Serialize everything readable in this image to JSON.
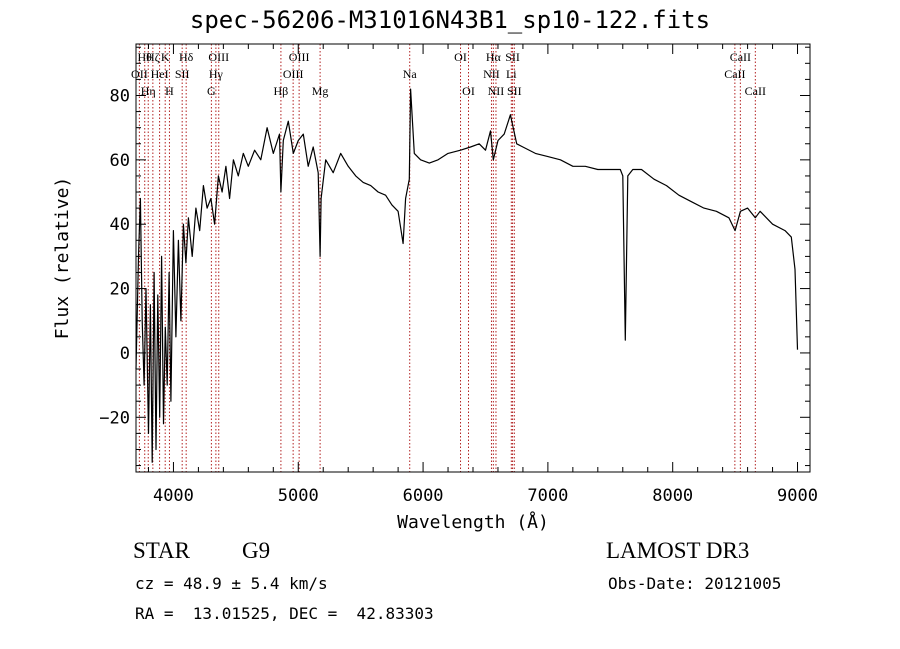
{
  "title": "spec-56206-M31016N43B1_sp10-122.fits",
  "info": {
    "class": "STAR",
    "subclass": "G9",
    "survey": "LAMOST DR3",
    "cz": "cz = 48.9 ± 5.4 km/s",
    "obs_date": "Obs-Date: 20121005",
    "radec": "RA =  13.01525, DEC =  42.83303"
  },
  "colors": {
    "spectrum": "#000000",
    "lines": "#b22222",
    "frame": "#000000"
  },
  "chart_data": {
    "type": "line",
    "title": "spec-56206-M31016N43B1_sp10-122.fits",
    "xlabel": "Wavelength (Å)",
    "ylabel": "Flux (relative)",
    "xlim": [
      3700,
      9100
    ],
    "ylim": [
      -37,
      96
    ],
    "xticks": [
      4000,
      5000,
      6000,
      7000,
      8000,
      9000
    ],
    "yticks": [
      -20,
      0,
      20,
      40,
      60,
      80
    ],
    "series": [
      {
        "name": "flux",
        "points": [
          [
            3700,
            -5
          ],
          [
            3720,
            30
          ],
          [
            3735,
            48
          ],
          [
            3750,
            10
          ],
          [
            3765,
            -10
          ],
          [
            3780,
            20
          ],
          [
            3800,
            -25
          ],
          [
            3815,
            15
          ],
          [
            3830,
            -34
          ],
          [
            3845,
            25
          ],
          [
            3860,
            -30
          ],
          [
            3875,
            18
          ],
          [
            3890,
            -20
          ],
          [
            3905,
            30
          ],
          [
            3920,
            -22
          ],
          [
            3935,
            8
          ],
          [
            3950,
            -10
          ],
          [
            3965,
            25
          ],
          [
            3980,
            -15
          ],
          [
            4000,
            38
          ],
          [
            4020,
            5
          ],
          [
            4040,
            35
          ],
          [
            4060,
            10
          ],
          [
            4080,
            40
          ],
          [
            4100,
            28
          ],
          [
            4120,
            42
          ],
          [
            4150,
            30
          ],
          [
            4180,
            45
          ],
          [
            4210,
            38
          ],
          [
            4240,
            52
          ],
          [
            4270,
            45
          ],
          [
            4300,
            48
          ],
          [
            4330,
            40
          ],
          [
            4360,
            55
          ],
          [
            4390,
            50
          ],
          [
            4420,
            58
          ],
          [
            4450,
            48
          ],
          [
            4480,
            60
          ],
          [
            4520,
            55
          ],
          [
            4560,
            62
          ],
          [
            4600,
            58
          ],
          [
            4650,
            63
          ],
          [
            4700,
            60
          ],
          [
            4750,
            70
          ],
          [
            4800,
            62
          ],
          [
            4850,
            68
          ],
          [
            4861,
            50
          ],
          [
            4880,
            66
          ],
          [
            4920,
            72
          ],
          [
            4960,
            62
          ],
          [
            5000,
            66
          ],
          [
            5040,
            68
          ],
          [
            5080,
            58
          ],
          [
            5120,
            64
          ],
          [
            5160,
            56
          ],
          [
            5175,
            30
          ],
          [
            5183,
            48
          ],
          [
            5220,
            60
          ],
          [
            5280,
            56
          ],
          [
            5340,
            62
          ],
          [
            5400,
            58
          ],
          [
            5460,
            55
          ],
          [
            5520,
            53
          ],
          [
            5580,
            52
          ],
          [
            5640,
            50
          ],
          [
            5700,
            49
          ],
          [
            5750,
            46
          ],
          [
            5800,
            44
          ],
          [
            5840,
            34
          ],
          [
            5860,
            48
          ],
          [
            5890,
            54
          ],
          [
            5900,
            82
          ],
          [
            5930,
            62
          ],
          [
            5980,
            60
          ],
          [
            6050,
            59
          ],
          [
            6120,
            60
          ],
          [
            6200,
            62
          ],
          [
            6300,
            63
          ],
          [
            6380,
            64
          ],
          [
            6450,
            65
          ],
          [
            6500,
            63
          ],
          [
            6540,
            69
          ],
          [
            6563,
            60
          ],
          [
            6600,
            66
          ],
          [
            6650,
            68
          ],
          [
            6700,
            74
          ],
          [
            6750,
            65
          ],
          [
            6800,
            64
          ],
          [
            6900,
            62
          ],
          [
            7000,
            61
          ],
          [
            7100,
            60
          ],
          [
            7200,
            58
          ],
          [
            7300,
            58
          ],
          [
            7400,
            57
          ],
          [
            7500,
            57
          ],
          [
            7580,
            57
          ],
          [
            7600,
            55
          ],
          [
            7620,
            4
          ],
          [
            7640,
            55
          ],
          [
            7680,
            57
          ],
          [
            7750,
            57
          ],
          [
            7850,
            54
          ],
          [
            7950,
            52
          ],
          [
            8050,
            49
          ],
          [
            8150,
            47
          ],
          [
            8250,
            45
          ],
          [
            8350,
            44
          ],
          [
            8450,
            42
          ],
          [
            8500,
            38
          ],
          [
            8542,
            44
          ],
          [
            8600,
            45
          ],
          [
            8662,
            42
          ],
          [
            8700,
            44
          ],
          [
            8800,
            40
          ],
          [
            8900,
            38
          ],
          [
            8950,
            36
          ],
          [
            8980,
            26
          ],
          [
            9000,
            1
          ]
        ]
      }
    ],
    "lines": [
      {
        "x": 3727,
        "upper": "OII",
        "lower": "OII",
        "tier": 2
      },
      {
        "x": 3770,
        "upper": "Hθ",
        "lower": "",
        "tier": 1
      },
      {
        "x": 3798,
        "upper": "Hη",
        "lower": "",
        "tier": 3
      },
      {
        "x": 3835,
        "upper": "Hζ",
        "lower": "",
        "tier": 1
      },
      {
        "x": 3889,
        "upper": "HeI",
        "lower": "",
        "tier": 2
      },
      {
        "x": 3934,
        "upper": "K",
        "lower": "",
        "tier": 1
      },
      {
        "x": 3968,
        "upper": "H",
        "lower": "",
        "tier": 3
      },
      {
        "x": 4070,
        "upper": "SII",
        "lower": "",
        "tier": 2
      },
      {
        "x": 4102,
        "upper": "Hδ",
        "lower": "",
        "tier": 1
      },
      {
        "x": 4304,
        "upper": "G",
        "lower": "",
        "tier": 3
      },
      {
        "x": 4340,
        "upper": "Hγ",
        "lower": "",
        "tier": 2
      },
      {
        "x": 4363,
        "upper": "OIII",
        "lower": "",
        "tier": 1
      },
      {
        "x": 4861,
        "upper": "Hβ",
        "lower": "",
        "tier": 3
      },
      {
        "x": 4959,
        "upper": "OIII",
        "lower": "",
        "tier": 2
      },
      {
        "x": 5007,
        "upper": "OIII",
        "lower": "",
        "tier": 1
      },
      {
        "x": 5175,
        "upper": "Mg",
        "lower": "",
        "tier": 3
      },
      {
        "x": 5893,
        "upper": "Na",
        "lower": "",
        "tier": 2
      },
      {
        "x": 6300,
        "upper": "OI",
        "lower": "",
        "tier": 1
      },
      {
        "x": 6364,
        "upper": "OI",
        "lower": "",
        "tier": 3
      },
      {
        "x": 6548,
        "upper": "NII",
        "lower": "",
        "tier": 2
      },
      {
        "x": 6563,
        "upper": "Hα",
        "lower": "",
        "tier": 1
      },
      {
        "x": 6584,
        "upper": "NII",
        "lower": "",
        "tier": 3
      },
      {
        "x": 6707,
        "upper": "Li",
        "lower": "",
        "tier": 2
      },
      {
        "x": 6717,
        "upper": "SII",
        "lower": "",
        "tier": 1
      },
      {
        "x": 6731,
        "upper": "SII",
        "lower": "",
        "tier": 3
      },
      {
        "x": 8498,
        "upper": "CaII",
        "lower": "",
        "tier": 2
      },
      {
        "x": 8542,
        "upper": "CaII",
        "lower": "",
        "tier": 1
      },
      {
        "x": 8662,
        "upper": "CaII",
        "lower": "",
        "tier": 3
      }
    ]
  }
}
